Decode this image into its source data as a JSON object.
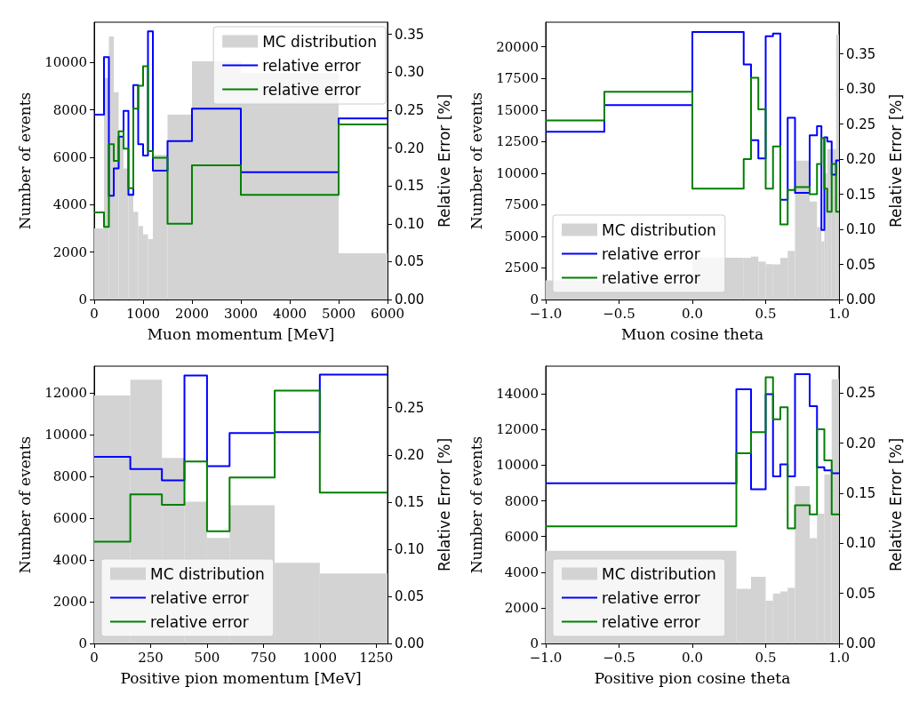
{
  "chart_data": [
    {
      "type": "histogram",
      "xlabel": "Muon momentum [MeV]",
      "ylabel": "Number of events",
      "y2label": "Relative Error [%]",
      "legend": "top right",
      "xlim": [
        0,
        6000
      ],
      "xticks": [
        0,
        1000,
        2000,
        3000,
        4000,
        5000,
        6000
      ],
      "ylim": [
        0,
        11700
      ],
      "yticks": [
        0,
        2000,
        4000,
        6000,
        8000,
        10000
      ],
      "y2lim": [
        0,
        0.366
      ],
      "y2ticks": [
        {
          "value": 0,
          "label": "0.00"
        },
        {
          "value": 0.05,
          "label": "0.05"
        },
        {
          "value": 0.1,
          "label": "0.10"
        },
        {
          "value": 0.15,
          "label": "0.15"
        },
        {
          "value": 0.2,
          "label": "0.20"
        },
        {
          "value": 0.25,
          "label": "0.25"
        },
        {
          "value": 0.3,
          "label": "0.30"
        },
        {
          "value": 0.35,
          "label": "0.35"
        }
      ],
      "series": [
        {
          "name": "MC distribution",
          "color": "#d3d3d3",
          "bins": [
            0,
            200,
            300,
            400,
            500,
            600,
            700,
            800,
            900,
            1000,
            1100,
            1200,
            1500,
            2000,
            3000,
            5000,
            6000
          ],
          "values": [
            3000,
            9350,
            11100,
            8750,
            6850,
            5530,
            4500,
            3700,
            3100,
            2750,
            2550,
            6100,
            7800,
            10050,
            9550,
            1950
          ]
        },
        {
          "name": "relative error",
          "type": "step",
          "axis": "y2",
          "color": "#0000ff",
          "x": [
            0,
            200,
            300,
            400,
            500,
            600,
            700,
            800,
            900,
            1000,
            1100,
            1200,
            1500,
            2000,
            3000,
            5000,
            6000
          ],
          "values": [
            0.244,
            0.32,
            0.137,
            0.173,
            0.215,
            0.249,
            0.138,
            0.283,
            0.205,
            0.19,
            0.354,
            0.17,
            0.209,
            0.252,
            0.168,
            0.239,
            0.239
          ]
        },
        {
          "name": "relative error",
          "type": "step",
          "axis": "y2",
          "color": "#008000",
          "x": [
            0,
            200,
            300,
            400,
            500,
            600,
            700,
            800,
            900,
            1000,
            1100,
            1200,
            1500,
            2000,
            3000,
            5000,
            6000
          ],
          "values": [
            0.115,
            0.096,
            0.205,
            0.183,
            0.222,
            0.199,
            0.147,
            0.252,
            0.282,
            0.308,
            0.196,
            0.187,
            0.1,
            0.177,
            0.138,
            0.231,
            0.231
          ]
        }
      ]
    },
    {
      "type": "histogram",
      "xlabel": "Muon cosine theta",
      "ylabel": "Number of events",
      "y2label": "Relative Error [%]",
      "legend": "bottom left",
      "xlim": [
        -1,
        1
      ],
      "xticks": [
        {
          "value": -1,
          "label": "−1.0"
        },
        {
          "value": -0.5,
          "label": "−0.5"
        },
        {
          "value": 0,
          "label": "0.0"
        },
        {
          "value": 0.5,
          "label": "0.5"
        },
        {
          "value": 1,
          "label": "1.0"
        }
      ],
      "ylim": [
        0,
        21950
      ],
      "yticks": [
        0,
        2500,
        5000,
        7500,
        10000,
        12500,
        15000,
        17500,
        20000
      ],
      "y2lim": [
        0,
        0.395
      ],
      "y2ticks": [
        {
          "value": 0,
          "label": "0.00"
        },
        {
          "value": 0.05,
          "label": "0.05"
        },
        {
          "value": 0.1,
          "label": "0.10"
        },
        {
          "value": 0.15,
          "label": "0.15"
        },
        {
          "value": 0.2,
          "label": "0.20"
        },
        {
          "value": 0.25,
          "label": "0.25"
        },
        {
          "value": 0.3,
          "label": "0.30"
        },
        {
          "value": 0.35,
          "label": "0.35"
        }
      ],
      "series": [
        {
          "name": "MC distribution",
          "color": "#d3d3d3",
          "bins": [
            -1,
            -0.6,
            0,
            0.35,
            0.4,
            0.45,
            0.5,
            0.55,
            0.6,
            0.65,
            0.7,
            0.8,
            0.85,
            0.88,
            0.9,
            0.92,
            0.95,
            0.98,
            1
          ],
          "values": [
            1510,
            1300,
            3300,
            3300,
            3400,
            3000,
            2800,
            2780,
            3300,
            3850,
            11000,
            7750,
            5750,
            4600,
            10000,
            11900,
            11900,
            20950
          ]
        },
        {
          "name": "relative error",
          "type": "step",
          "axis": "y2",
          "color": "#0000ff",
          "x": [
            -1,
            -0.6,
            0,
            0.35,
            0.4,
            0.45,
            0.5,
            0.55,
            0.6,
            0.65,
            0.7,
            0.8,
            0.85,
            0.88,
            0.9,
            0.92,
            0.95,
            0.98,
            1
          ],
          "values": [
            0.239,
            0.277,
            0.381,
            0.335,
            0.227,
            0.201,
            0.375,
            0.379,
            0.142,
            0.259,
            0.152,
            0.234,
            0.247,
            0.099,
            0.231,
            0.225,
            0.178,
            0.198,
            0.198
          ]
        },
        {
          "name": "relative error",
          "type": "step",
          "axis": "y2",
          "color": "#008000",
          "x": [
            -1,
            -0.6,
            0,
            0.35,
            0.4,
            0.45,
            0.5,
            0.55,
            0.6,
            0.65,
            0.7,
            0.8,
            0.85,
            0.88,
            0.9,
            0.92,
            0.95,
            0.98,
            1
          ],
          "values": [
            0.255,
            0.296,
            0.158,
            0.2,
            0.316,
            0.271,
            0.158,
            0.218,
            0.107,
            0.156,
            0.16,
            0.15,
            0.193,
            0.23,
            0.158,
            0.125,
            0.193,
            0.125,
            0.125
          ]
        }
      ]
    },
    {
      "type": "histogram",
      "xlabel": "Positive pion momentum [MeV]",
      "ylabel": "Number of events",
      "y2label": "Relative Error [%]",
      "legend": "bottom left",
      "xlim": [
        0,
        1300
      ],
      "xticks": [
        0,
        250,
        500,
        750,
        1000,
        1250
      ],
      "ylim": [
        0,
        13300
      ],
      "yticks": [
        0,
        2000,
        4000,
        6000,
        8000,
        10000,
        12000
      ],
      "y2lim": [
        0,
        0.294
      ],
      "y2ticks": [
        {
          "value": 0,
          "label": "0.00"
        },
        {
          "value": 0.05,
          "label": "0.05"
        },
        {
          "value": 0.1,
          "label": "0.10"
        },
        {
          "value": 0.15,
          "label": "0.15"
        },
        {
          "value": 0.2,
          "label": "0.20"
        },
        {
          "value": 0.25,
          "label": "0.25"
        }
      ],
      "series": [
        {
          "name": "MC distribution",
          "color": "#d3d3d3",
          "bins": [
            0,
            160,
            300,
            400,
            500,
            600,
            800,
            1000,
            1300
          ],
          "values": [
            11890,
            12650,
            8900,
            6800,
            5060,
            6630,
            3870,
            3360
          ]
        },
        {
          "name": "relative error",
          "type": "step",
          "axis": "y2",
          "color": "#0000ff",
          "x": [
            0,
            160,
            300,
            400,
            500,
            600,
            800,
            1000,
            1300
          ],
          "values": [
            0.198,
            0.185,
            0.173,
            0.284,
            0.188,
            0.223,
            0.224,
            0.285,
            0.285
          ]
        },
        {
          "name": "relative error",
          "type": "step",
          "axis": "y2",
          "color": "#008000",
          "x": [
            0,
            160,
            300,
            400,
            500,
            600,
            800,
            1000,
            1300
          ],
          "values": [
            0.108,
            0.158,
            0.147,
            0.193,
            0.119,
            0.176,
            0.268,
            0.16,
            0.16
          ]
        }
      ]
    },
    {
      "type": "histogram",
      "xlabel": "Positive pion cosine theta",
      "ylabel": "Number of events",
      "y2label": "Relative Error [%]",
      "legend": "bottom left",
      "xlim": [
        -1,
        1
      ],
      "xticks": [
        {
          "value": -1,
          "label": "−1.0"
        },
        {
          "value": -0.5,
          "label": "−0.5"
        },
        {
          "value": 0,
          "label": "0.0"
        },
        {
          "value": 0.5,
          "label": "0.5"
        },
        {
          "value": 1,
          "label": "1.0"
        }
      ],
      "ylim": [
        0,
        15560
      ],
      "yticks": [
        0,
        2000,
        4000,
        6000,
        8000,
        10000,
        12000,
        14000
      ],
      "y2lim": [
        0,
        0.277
      ],
      "y2ticks": [
        {
          "value": 0,
          "label": "0.00"
        },
        {
          "value": 0.05,
          "label": "0.05"
        },
        {
          "value": 0.1,
          "label": "0.10"
        },
        {
          "value": 0.15,
          "label": "0.15"
        },
        {
          "value": 0.2,
          "label": "0.20"
        },
        {
          "value": 0.25,
          "label": "0.25"
        }
      ],
      "series": [
        {
          "name": "MC distribution",
          "color": "#d3d3d3",
          "bins": [
            -1,
            0.3,
            0.4,
            0.5,
            0.55,
            0.6,
            0.65,
            0.7,
            0.8,
            0.85,
            0.9,
            0.95,
            1
          ],
          "values": [
            5200,
            3070,
            3740,
            2400,
            2800,
            2920,
            3120,
            8830,
            5910,
            7280,
            9490,
            14820
          ]
        },
        {
          "name": "relative error",
          "type": "step",
          "axis": "y2",
          "color": "#0000ff",
          "x": [
            -1,
            0.3,
            0.4,
            0.5,
            0.55,
            0.6,
            0.65,
            0.7,
            0.8,
            0.85,
            0.9,
            0.95,
            1
          ],
          "values": [
            0.16,
            0.254,
            0.154,
            0.249,
            0.167,
            0.179,
            0.167,
            0.269,
            0.237,
            0.176,
            0.173,
            0.17,
            0.17
          ]
        },
        {
          "name": "relative error",
          "type": "step",
          "axis": "y2",
          "color": "#008000",
          "x": [
            -1,
            0.3,
            0.4,
            0.5,
            0.55,
            0.6,
            0.65,
            0.7,
            0.8,
            0.85,
            0.9,
            0.95,
            1
          ],
          "values": [
            0.117,
            0.19,
            0.211,
            0.266,
            0.224,
            0.236,
            0.115,
            0.138,
            0.129,
            0.214,
            0.183,
            0.129,
            0.129
          ]
        }
      ]
    }
  ]
}
